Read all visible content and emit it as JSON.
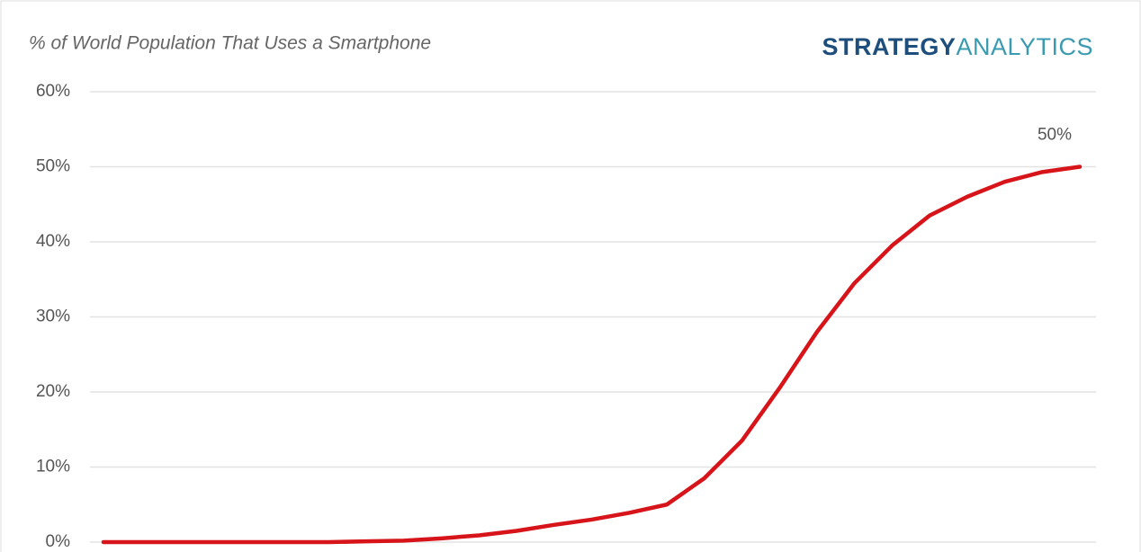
{
  "chart_data": {
    "type": "line",
    "title": "% of World Population That Uses a Smartphone",
    "logo": {
      "first": "STRATEGY",
      "second": "ANALYTICS"
    },
    "categories": [
      null,
      null,
      null,
      null,
      null,
      null,
      null,
      null,
      null,
      null,
      null,
      null,
      null,
      null,
      null,
      null,
      null,
      null,
      null,
      null,
      null,
      null,
      null,
      null,
      null,
      null,
      null
    ],
    "series": [
      {
        "color": "#d7141a",
        "values": [
          0,
          0,
          0,
          0,
          0,
          0,
          0,
          0.1,
          0.2,
          0.5,
          0.9,
          1.5,
          2.3,
          3,
          3.9,
          5,
          8.5,
          13.5,
          20.5,
          28,
          34.5,
          39.5,
          43.5,
          46,
          48,
          49.3,
          50
        ],
        "value_labels": [
          null,
          null,
          null,
          null,
          null,
          null,
          null,
          null,
          null,
          null,
          null,
          null,
          null,
          null,
          null,
          null,
          null,
          null,
          null,
          null,
          null,
          null,
          null,
          null,
          null,
          null,
          "50%"
        ]
      }
    ],
    "ylim": [
      0,
      60
    ],
    "yticks": [
      {
        "value": 0,
        "label": "0%"
      },
      {
        "value": 10,
        "label": "10%"
      },
      {
        "value": 20,
        "label": "20%"
      },
      {
        "value": 30,
        "label": "30%"
      },
      {
        "value": 40,
        "label": "40%"
      },
      {
        "value": 50,
        "label": "50%"
      },
      {
        "value": 60,
        "label": "60%"
      }
    ],
    "grid": true
  }
}
